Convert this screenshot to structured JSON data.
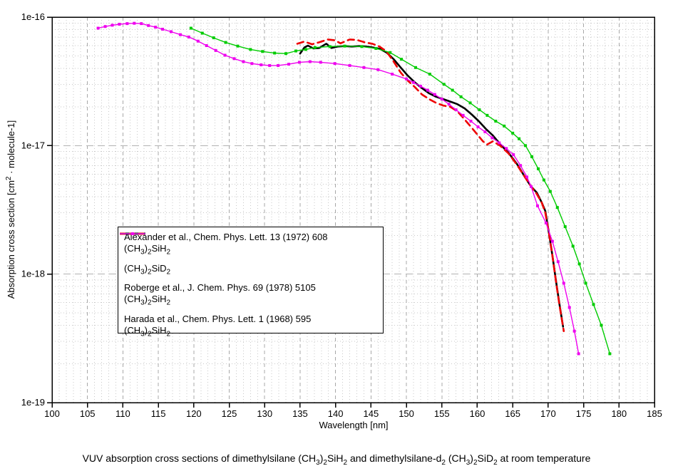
{
  "chart_data": {
    "type": "line",
    "title": "VUV absorption cross sections of dimethylsilane (CH_3)_2SiH_2 and dimethylsilane-d_2 (CH_3)_2SiD_2 at room temperature",
    "xlabel": "Wavelength [nm]",
    "ylabel": "Absorption cross section [cm^2 · molecule-1]",
    "x_axis": {
      "min": 100,
      "max": 185,
      "major_step": 5,
      "minor_step": 1
    },
    "y_axis": {
      "scale": "log",
      "min": 1e-19,
      "max": 1e-16,
      "tick_labels": [
        "1e-16",
        "1e-17",
        "1e-18",
        "1e-19"
      ]
    },
    "grid": {
      "minor_color": "#c8c8c8",
      "major_color": "#a8a8a8",
      "decade_color": "#b2b2b2"
    },
    "legend_position": "middle-left",
    "series": [
      {
        "id": "alexander",
        "label": "Alexander et al., Chem. Phys. Lett. 13 (1972) 608",
        "formula": "(CH_3)_2SiH_2",
        "color": "#000000",
        "dash": "solid",
        "width": 2.6,
        "marker": false,
        "points": [
          [
            135.0,
            5.2e-17
          ],
          [
            135.6,
            5.8e-17
          ],
          [
            136.1,
            6e-17
          ],
          [
            136.9,
            5.7e-17
          ],
          [
            137.7,
            5.75e-17
          ],
          [
            138.7,
            6.2e-17
          ],
          [
            139.4,
            5.75e-17
          ],
          [
            140.3,
            5.9e-17
          ],
          [
            141.3,
            5.95e-17
          ],
          [
            142.3,
            5.9e-17
          ],
          [
            143.3,
            5.95e-17
          ],
          [
            144.3,
            5.9e-17
          ],
          [
            145.3,
            5.8e-17
          ],
          [
            146.3,
            5.65e-17
          ],
          [
            147.2,
            5.3e-17
          ],
          [
            148.2,
            4.7e-17
          ],
          [
            149.2,
            4.05e-17
          ],
          [
            150.2,
            3.5e-17
          ],
          [
            151.2,
            3.1e-17
          ],
          [
            152.2,
            2.8e-17
          ],
          [
            153.2,
            2.55e-17
          ],
          [
            154.2,
            2.4e-17
          ],
          [
            155.2,
            2.3e-17
          ],
          [
            156.2,
            2.2e-17
          ],
          [
            157.2,
            2.1e-17
          ],
          [
            158.2,
            1.95e-17
          ],
          [
            159.2,
            1.75e-17
          ],
          [
            160.2,
            1.55e-17
          ],
          [
            161.2,
            1.35e-17
          ],
          [
            162.2,
            1.2e-17
          ],
          [
            163.4,
            1e-17
          ],
          [
            164.4,
            8.8e-18
          ],
          [
            165.6,
            7.2e-18
          ],
          [
            166.8,
            5.6e-18
          ],
          [
            167.6,
            4.8e-18
          ],
          [
            168.4,
            4.3e-18
          ],
          [
            169.1,
            3.6e-18
          ],
          [
            169.6,
            3.1e-18
          ],
          [
            170.1,
            2.1e-18
          ],
          [
            170.6,
            1.4e-18
          ],
          [
            171.1,
            8.9e-19
          ],
          [
            171.6,
            5.8e-19
          ],
          [
            172.1,
            3.9e-19
          ]
        ]
      },
      {
        "id": "sid2",
        "label": "(CH_3)_2SiD_2",
        "formula": null,
        "color": "#ee0000",
        "dash": "dashed",
        "width": 2.6,
        "marker": false,
        "points": [
          [
            134.6,
            6.2e-17
          ],
          [
            135.6,
            6.45e-17
          ],
          [
            136.7,
            6.15e-17
          ],
          [
            137.6,
            6.35e-17
          ],
          [
            138.9,
            6.7e-17
          ],
          [
            139.9,
            6.6e-17
          ],
          [
            140.7,
            6.25e-17
          ],
          [
            142.0,
            6.7e-17
          ],
          [
            143.0,
            6.65e-17
          ],
          [
            144.2,
            6.35e-17
          ],
          [
            145.2,
            6.2e-17
          ],
          [
            146.2,
            5.9e-17
          ],
          [
            147.2,
            5.4e-17
          ],
          [
            148.2,
            4.5e-17
          ],
          [
            149.2,
            3.7e-17
          ],
          [
            150.2,
            3.2e-17
          ],
          [
            151.2,
            2.85e-17
          ],
          [
            152.2,
            2.5e-17
          ],
          [
            153.2,
            2.3e-17
          ],
          [
            154.2,
            2.15e-17
          ],
          [
            155.2,
            2.05e-17
          ],
          [
            156.2,
            2e-17
          ],
          [
            157.2,
            1.85e-17
          ],
          [
            158.2,
            1.6e-17
          ],
          [
            159.2,
            1.38e-17
          ],
          [
            160.0,
            1.22e-17
          ],
          [
            160.8,
            1.08e-17
          ],
          [
            161.4,
            1.02e-17
          ],
          [
            162.2,
            1.08e-17
          ],
          [
            163.2,
            1e-17
          ],
          [
            164.4,
            8.7e-18
          ],
          [
            165.6,
            7.1e-18
          ],
          [
            166.8,
            5.6e-18
          ],
          [
            167.6,
            4.8e-18
          ],
          [
            168.4,
            4.2e-18
          ],
          [
            169.1,
            3.6e-18
          ],
          [
            169.6,
            3e-18
          ],
          [
            170.1,
            2.1e-18
          ],
          [
            170.6,
            1.4e-18
          ],
          [
            171.1,
            8.8e-19
          ],
          [
            171.6,
            5.7e-19
          ],
          [
            172.0,
            4.2e-19
          ],
          [
            172.2,
            3.6e-19
          ]
        ]
      },
      {
        "id": "roberge",
        "label": "Roberge et al., J. Chem. Phys. 69 (1978) 5105",
        "formula": "(CH_3)_2SiH_2",
        "color": "#00cc00",
        "dash": "solid",
        "width": 1.4,
        "marker": true,
        "points": [
          [
            119.6,
            8.2e-17
          ],
          [
            121.2,
            7.5e-17
          ],
          [
            122.8,
            6.9e-17
          ],
          [
            124.5,
            6.35e-17
          ],
          [
            126.2,
            5.95e-17
          ],
          [
            128.0,
            5.6e-17
          ],
          [
            129.7,
            5.4e-17
          ],
          [
            131.4,
            5.25e-17
          ],
          [
            133.0,
            5.2e-17
          ],
          [
            134.4,
            5.45e-17
          ],
          [
            135.8,
            5.6e-17
          ],
          [
            137.1,
            5.8e-17
          ],
          [
            139.2,
            5.9e-17
          ],
          [
            141.3,
            5.95e-17
          ],
          [
            143.7,
            5.9e-17
          ],
          [
            145.7,
            5.7e-17
          ],
          [
            147.7,
            5.3e-17
          ],
          [
            149.3,
            4.7e-17
          ],
          [
            151.3,
            4.05e-17
          ],
          [
            153.3,
            3.6e-17
          ],
          [
            155.3,
            3e-17
          ],
          [
            156.5,
            2.7e-17
          ],
          [
            157.7,
            2.4e-17
          ],
          [
            159.0,
            2.15e-17
          ],
          [
            160.3,
            1.9e-17
          ],
          [
            161.4,
            1.72e-17
          ],
          [
            162.6,
            1.55e-17
          ],
          [
            163.8,
            1.42e-17
          ],
          [
            165.0,
            1.25e-17
          ],
          [
            165.9,
            1.13e-17
          ],
          [
            166.8,
            1e-17
          ],
          [
            167.7,
            8.2e-18
          ],
          [
            168.6,
            6.6e-18
          ],
          [
            169.4,
            5.4e-18
          ],
          [
            170.3,
            4.4e-18
          ],
          [
            171.3,
            3.3e-18
          ],
          [
            172.4,
            2.34e-18
          ],
          [
            173.5,
            1.65e-18
          ],
          [
            174.4,
            1.2e-18
          ],
          [
            175.3,
            8.5e-19
          ],
          [
            176.4,
            5.8e-19
          ],
          [
            177.5,
            4e-19
          ],
          [
            178.7,
            2.4e-19
          ]
        ]
      },
      {
        "id": "harada",
        "label": "Harada et al., Chem. Phys. Lett. 1 (1968) 595",
        "formula": "(CH_3)_2SiH_2",
        "color": "#ee00ee",
        "dash": "solid",
        "width": 1.4,
        "marker": true,
        "points": [
          [
            106.5,
            8.2e-17
          ],
          [
            107.5,
            8.45e-17
          ],
          [
            108.5,
            8.65e-17
          ],
          [
            109.5,
            8.8e-17
          ],
          [
            110.6,
            8.9e-17
          ],
          [
            111.6,
            8.95e-17
          ],
          [
            112.6,
            8.9e-17
          ],
          [
            113.6,
            8.6e-17
          ],
          [
            114.6,
            8.35e-17
          ],
          [
            115.6,
            8.05e-17
          ],
          [
            116.8,
            7.7e-17
          ],
          [
            118.1,
            7.3e-17
          ],
          [
            119.3,
            7e-17
          ],
          [
            120.6,
            6.5e-17
          ],
          [
            121.8,
            6e-17
          ],
          [
            123.1,
            5.5e-17
          ],
          [
            124.4,
            5.05e-17
          ],
          [
            125.7,
            4.75e-17
          ],
          [
            127.0,
            4.5e-17
          ],
          [
            128.2,
            4.35e-17
          ],
          [
            129.5,
            4.25e-17
          ],
          [
            130.7,
            4.2e-17
          ],
          [
            131.9,
            4.2e-17
          ],
          [
            133.4,
            4.3e-17
          ],
          [
            134.9,
            4.45e-17
          ],
          [
            136.4,
            4.5e-17
          ],
          [
            137.9,
            4.45e-17
          ],
          [
            139.9,
            4.35e-17
          ],
          [
            142.0,
            4.2e-17
          ],
          [
            144.0,
            4.05e-17
          ],
          [
            146.0,
            3.9e-17
          ],
          [
            148.0,
            3.6e-17
          ],
          [
            150.0,
            3.3e-17
          ],
          [
            151.0,
            3.1e-17
          ],
          [
            152.0,
            2.9e-17
          ],
          [
            153.0,
            2.7e-17
          ],
          [
            154.0,
            2.5e-17
          ],
          [
            155.0,
            2.3e-17
          ],
          [
            156.0,
            2.1e-17
          ],
          [
            157.0,
            1.9e-17
          ],
          [
            158.0,
            1.72e-17
          ],
          [
            159.1,
            1.55e-17
          ],
          [
            160.1,
            1.4e-17
          ],
          [
            161.1,
            1.28e-17
          ],
          [
            162.1,
            1.15e-17
          ],
          [
            163.1,
            1.05e-17
          ],
          [
            164.1,
            9.5e-18
          ],
          [
            165.1,
            8.5e-18
          ],
          [
            166.1,
            7e-18
          ],
          [
            167.0,
            5.7e-18
          ],
          [
            167.6,
            4.8e-18
          ],
          [
            168.5,
            3.4e-18
          ],
          [
            169.7,
            2.5e-18
          ],
          [
            170.6,
            1.8e-18
          ],
          [
            171.4,
            1.25e-18
          ],
          [
            172.2,
            8.5e-19
          ],
          [
            173.0,
            5.5e-19
          ],
          [
            173.7,
            3.6e-19
          ],
          [
            174.3,
            2.4e-19
          ]
        ]
      }
    ]
  }
}
